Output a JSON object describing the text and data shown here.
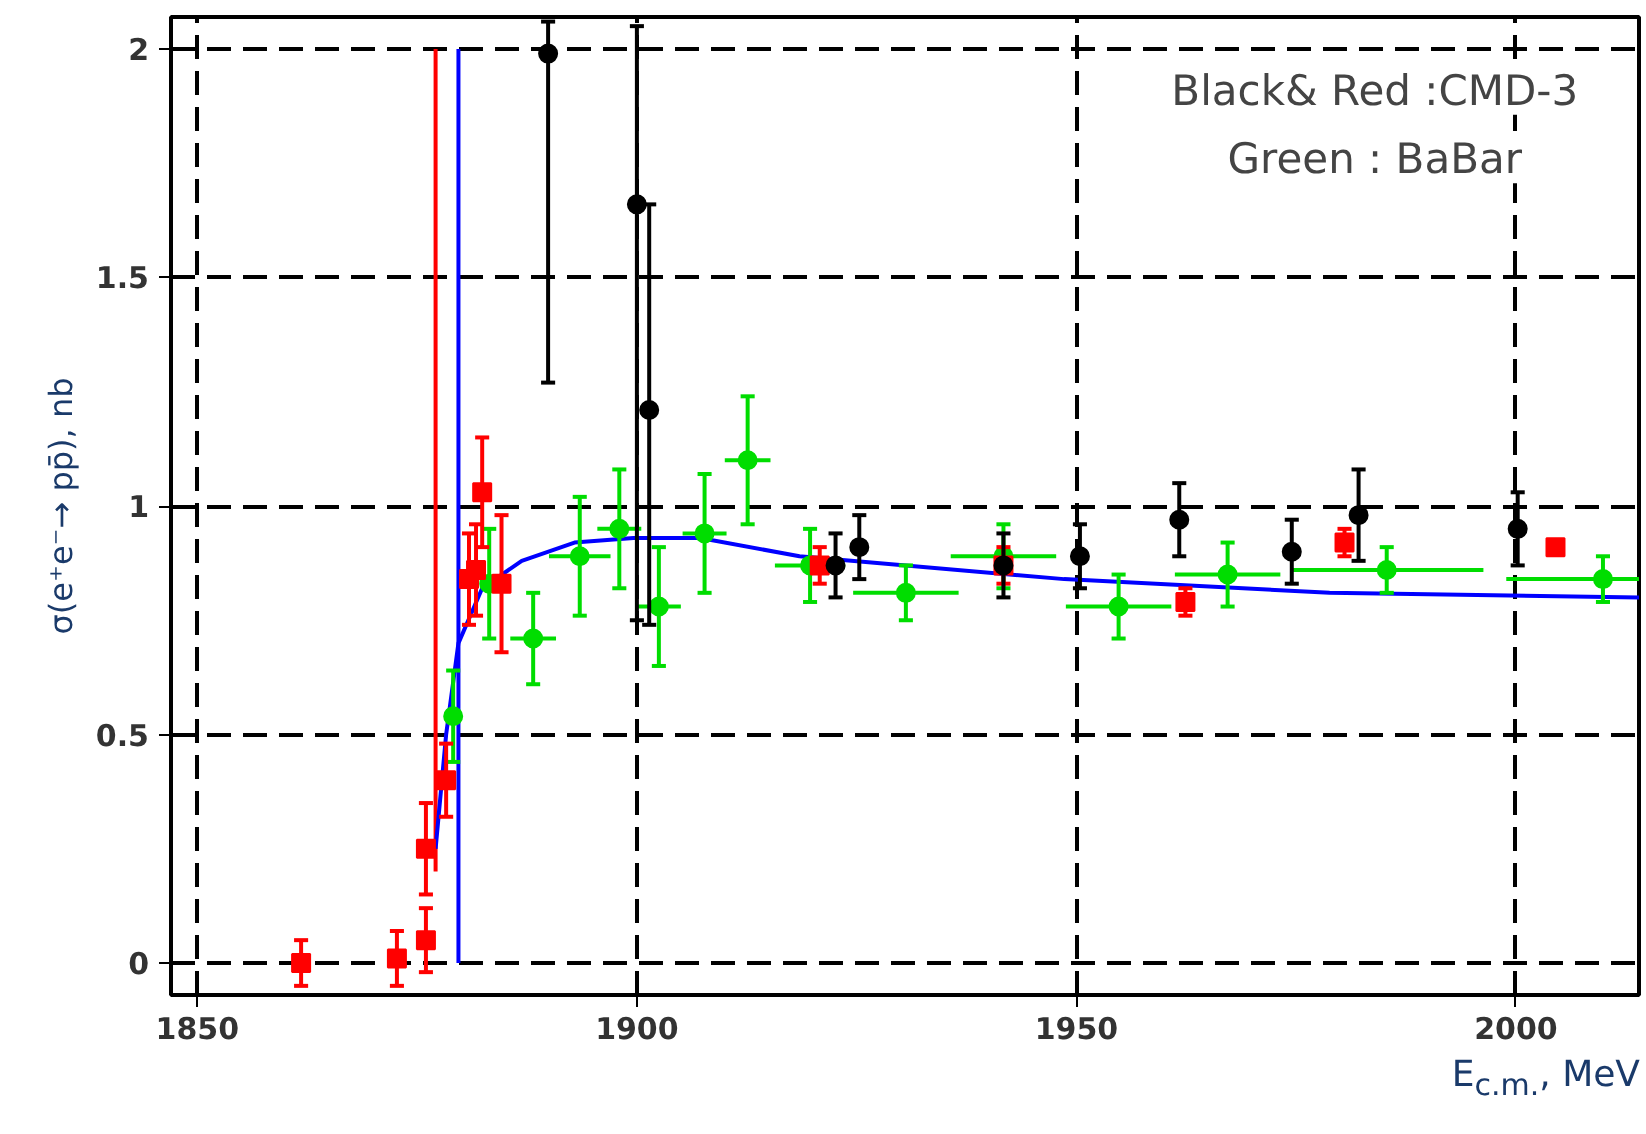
{
  "chart_data": {
    "type": "scatter",
    "xlabel": "E$_{c.m.}$, MeV",
    "ylabel": "σ(e⁺e⁻→ pp̄), nb",
    "annotations": [
      "Black& Red :CMD-3",
      "Green : BaBar"
    ],
    "xlim": [
      1847,
      2014
    ],
    "ylim": [
      -0.07,
      2.07
    ],
    "xticks": [
      1850,
      1900,
      1950,
      2000
    ],
    "yticks": [
      0,
      0.5,
      1,
      1.5,
      2
    ],
    "grid": true,
    "series": [
      {
        "type": "line",
        "color": "#ff0000",
        "x": [
          1877.1,
          1877.1
        ],
        "values": [
          0.2,
          2
        ],
        "marker": "none"
      },
      {
        "type": "line",
        "color": "#0000ff",
        "x": [
          1879.7,
          1879.7
        ],
        "values": [
          0,
          2
        ],
        "marker": "none"
      },
      {
        "type": "line",
        "color": "#0000ff",
        "marker": "none",
        "x": [
          1877.1,
          1878.3,
          1879.7,
          1882.4,
          1886.9,
          1892.9,
          1899.6,
          1907.2,
          1918.5,
          1948.6,
          1978.8,
          2014
        ],
        "values": [
          0.25,
          0.5,
          0.7,
          0.82,
          0.88,
          0.92,
          0.93,
          0.93,
          0.89,
          0.84,
          0.81,
          0.8
        ]
      },
      {
        "color": "#00dd00",
        "marker": "circle",
        "x": [
          1879.1,
          1883.2,
          1888.2,
          1893.5,
          1898,
          1902.5,
          1907.7,
          1912.6,
          1919.7,
          1930.6,
          1941.7,
          1954.8,
          1967.2,
          1985.3,
          2009.9
        ],
        "values": [
          0.54,
          0.83,
          0.71,
          0.89,
          0.95,
          0.78,
          0.94,
          1.1,
          0.87,
          0.81,
          0.89,
          0.78,
          0.85,
          0.86,
          0.84
        ],
        "errors": [
          0.1,
          0.12,
          0.1,
          0.13,
          0.13,
          0.13,
          0.13,
          0.14,
          0.08,
          0.06,
          0.07,
          0.07,
          0.07,
          0.05,
          0.05
        ],
        "xerrors": [
          1,
          1,
          2.6,
          3.5,
          2.5,
          2.5,
          2.5,
          2.6,
          4,
          6,
          6,
          6,
          6,
          11,
          11
        ]
      },
      {
        "color": "#ff0000",
        "marker": "square",
        "x": [
          1861.8,
          1872.7,
          1876,
          1876,
          1878.3,
          1880.9,
          1881.7,
          1882.4,
          1884.6,
          1920.8,
          1941.7,
          1962.4,
          1980.5,
          2004.5
        ],
        "values": [
          0,
          0.01,
          0.05,
          0.25,
          0.4,
          0.84,
          0.86,
          1.03,
          0.83,
          0.87,
          0.87,
          0.79,
          0.92,
          0.91
        ],
        "errors": [
          0.05,
          0.06,
          0.07,
          0.1,
          0.08,
          0.1,
          0.1,
          0.12,
          0.15,
          0.04,
          0.04,
          0.03,
          0.03,
          null
        ]
      },
      {
        "color": "#000000",
        "marker": "circle",
        "x": [
          1889.9,
          1900,
          1901.4,
          1922.6,
          1925.3,
          1941.7,
          1950.4,
          1961.7,
          1974.5,
          1982.1,
          2000.2
        ],
        "values": [
          1.99,
          1.66,
          1.21,
          0.87,
          0.91,
          0.87,
          0.89,
          0.97,
          0.9,
          0.98,
          0.95
        ],
        "errors": [
          [
            1.27,
            2.06
          ],
          [
            0.75,
            2.05
          ],
          [
            0.74,
            1.66
          ],
          0.07,
          0.07,
          0.07,
          0.07,
          0.08,
          0.07,
          0.1,
          0.08
        ]
      }
    ]
  }
}
